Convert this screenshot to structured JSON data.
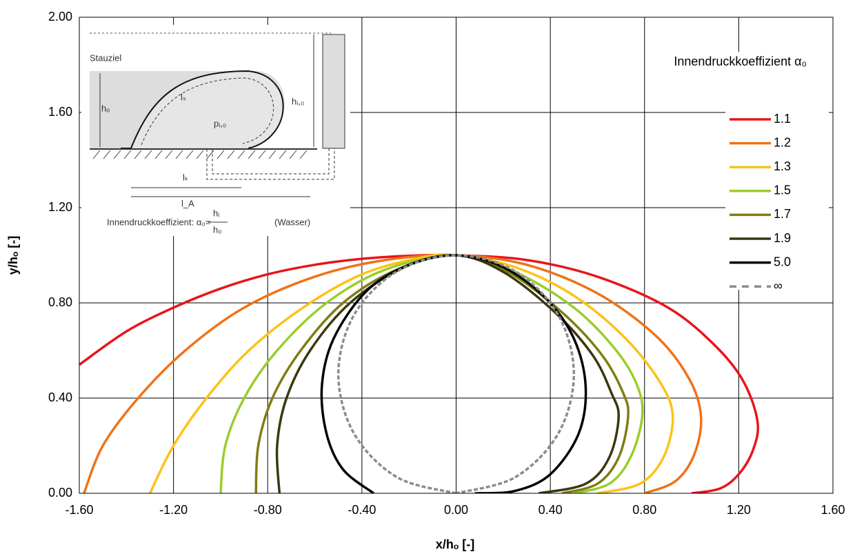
{
  "chart_data": {
    "type": "line",
    "xlabel": "x/hₒ [-]",
    "ylabel": "y/hₒ [-]",
    "legend_title": "Innendruckkoeffizient α₀",
    "legend": "upper right",
    "grid": true,
    "xlim": [
      -1.6,
      1.6
    ],
    "ylim": [
      0,
      2
    ],
    "xticks": [
      {
        "value": -1.6,
        "label": "-1.60"
      },
      {
        "value": -1.2,
        "label": "-1.20"
      },
      {
        "value": -0.8,
        "label": "-0.80"
      },
      {
        "value": -0.4,
        "label": "-0.40"
      },
      {
        "value": 0,
        "label": "0.00"
      },
      {
        "value": 0.4,
        "label": "0.40"
      },
      {
        "value": 0.8,
        "label": "0.80"
      },
      {
        "value": 1.2,
        "label": "1.20"
      },
      {
        "value": 1.6,
        "label": "1.60"
      }
    ],
    "yticks": [
      {
        "value": 0,
        "label": "0.00"
      },
      {
        "value": 0.4,
        "label": "0.40"
      },
      {
        "value": 0.8,
        "label": "0.80"
      },
      {
        "value": 1.2,
        "label": "1.20"
      },
      {
        "value": 1.6,
        "label": "1.60"
      },
      {
        "value": 2,
        "label": "2.00"
      }
    ],
    "inset_labels": [
      "Stauziel",
      "hₒ",
      "lₛ",
      "pᵢ,₀",
      "hᵢ,₀",
      "lₖ",
      "l_A",
      "Innendruckkoeffizient: α₀=",
      "hᵢ",
      "h₀",
      "(Wasser)"
    ],
    "series": [
      {
        "name": "1.1",
        "color": "#e8141c",
        "dash": false,
        "x": [
          -1.6,
          -1.4,
          -1.2,
          -1.0,
          -0.8,
          -0.6,
          -0.4,
          -0.2,
          0,
          0.3,
          0.6,
          0.9,
          1.1,
          1.22,
          1.28,
          1.26,
          1.2,
          1.12,
          1.0
        ],
        "values": [
          0.54,
          0.68,
          0.78,
          0.86,
          0.92,
          0.96,
          0.985,
          0.998,
          1.0,
          0.98,
          0.91,
          0.78,
          0.62,
          0.47,
          0.3,
          0.18,
          0.08,
          0.02,
          0
        ]
      },
      {
        "name": "1.2",
        "color": "#f07216",
        "dash": false,
        "x": [
          -1.58,
          -1.5,
          -1.35,
          -1.15,
          -0.9,
          -0.6,
          -0.3,
          0,
          0.3,
          0.6,
          0.85,
          0.99,
          1.04,
          1.01,
          0.93,
          0.8
        ],
        "values": [
          0,
          0.2,
          0.4,
          0.6,
          0.78,
          0.91,
          0.98,
          1.0,
          0.96,
          0.84,
          0.66,
          0.48,
          0.32,
          0.16,
          0.05,
          0
        ]
      },
      {
        "name": "1.3",
        "color": "#fcc218",
        "dash": false,
        "x": [
          -1.3,
          -1.2,
          -1.06,
          -0.88,
          -0.65,
          -0.4,
          -0.15,
          0,
          0.25,
          0.5,
          0.72,
          0.87,
          0.92,
          0.88,
          0.78,
          0.6
        ],
        "values": [
          0,
          0.2,
          0.4,
          0.6,
          0.78,
          0.92,
          0.99,
          1.0,
          0.95,
          0.83,
          0.65,
          0.46,
          0.32,
          0.15,
          0.04,
          0
        ]
      },
      {
        "name": "1.5",
        "color": "#9acd2a",
        "dash": false,
        "x": [
          -1.0,
          -0.98,
          -0.9,
          -0.76,
          -0.55,
          -0.3,
          0,
          0.25,
          0.5,
          0.68,
          0.77,
          0.79,
          0.74,
          0.65,
          0.5
        ],
        "values": [
          0,
          0.2,
          0.4,
          0.6,
          0.8,
          0.94,
          1.0,
          0.93,
          0.78,
          0.6,
          0.45,
          0.32,
          0.15,
          0.04,
          0
        ]
      },
      {
        "name": "1.7",
        "color": "#7f7d12",
        "dash": false,
        "x": [
          -0.85,
          -0.84,
          -0.78,
          -0.66,
          -0.48,
          -0.25,
          0,
          0.22,
          0.45,
          0.62,
          0.71,
          0.73,
          0.69,
          0.6,
          0.45
        ],
        "values": [
          0,
          0.2,
          0.4,
          0.6,
          0.8,
          0.94,
          1.0,
          0.93,
          0.76,
          0.58,
          0.42,
          0.32,
          0.15,
          0.04,
          0
        ]
      },
      {
        "name": "1.9",
        "color": "#3a3810",
        "dash": false,
        "x": [
          -0.75,
          -0.76,
          -0.72,
          -0.62,
          -0.45,
          -0.22,
          0,
          0.2,
          0.42,
          0.58,
          0.66,
          0.69,
          0.65,
          0.55,
          0.35
        ],
        "values": [
          0,
          0.2,
          0.4,
          0.6,
          0.8,
          0.95,
          1.0,
          0.93,
          0.76,
          0.58,
          0.42,
          0.32,
          0.15,
          0.04,
          0
        ]
      },
      {
        "name": "5.0",
        "color": "#000000",
        "dash": false,
        "x": [
          -0.35,
          -0.48,
          -0.55,
          -0.57,
          -0.52,
          -0.38,
          -0.2,
          0,
          0.2,
          0.38,
          0.5,
          0.55,
          0.52,
          0.4,
          0.25,
          0.08
        ],
        "values": [
          0,
          0.1,
          0.25,
          0.45,
          0.65,
          0.85,
          0.96,
          1.0,
          0.95,
          0.82,
          0.65,
          0.45,
          0.25,
          0.08,
          0.01,
          0
        ]
      },
      {
        "name": "∞",
        "color": "#8c8c8c",
        "dash": true,
        "x": [
          0,
          -0.25,
          -0.433,
          -0.5,
          -0.433,
          -0.25,
          0,
          0.25,
          0.433,
          0.5,
          0.433,
          0.25,
          0
        ],
        "values": [
          0,
          0.067,
          0.25,
          0.5,
          0.75,
          0.933,
          1,
          0.933,
          0.75,
          0.5,
          0.25,
          0.067,
          0
        ]
      }
    ]
  }
}
